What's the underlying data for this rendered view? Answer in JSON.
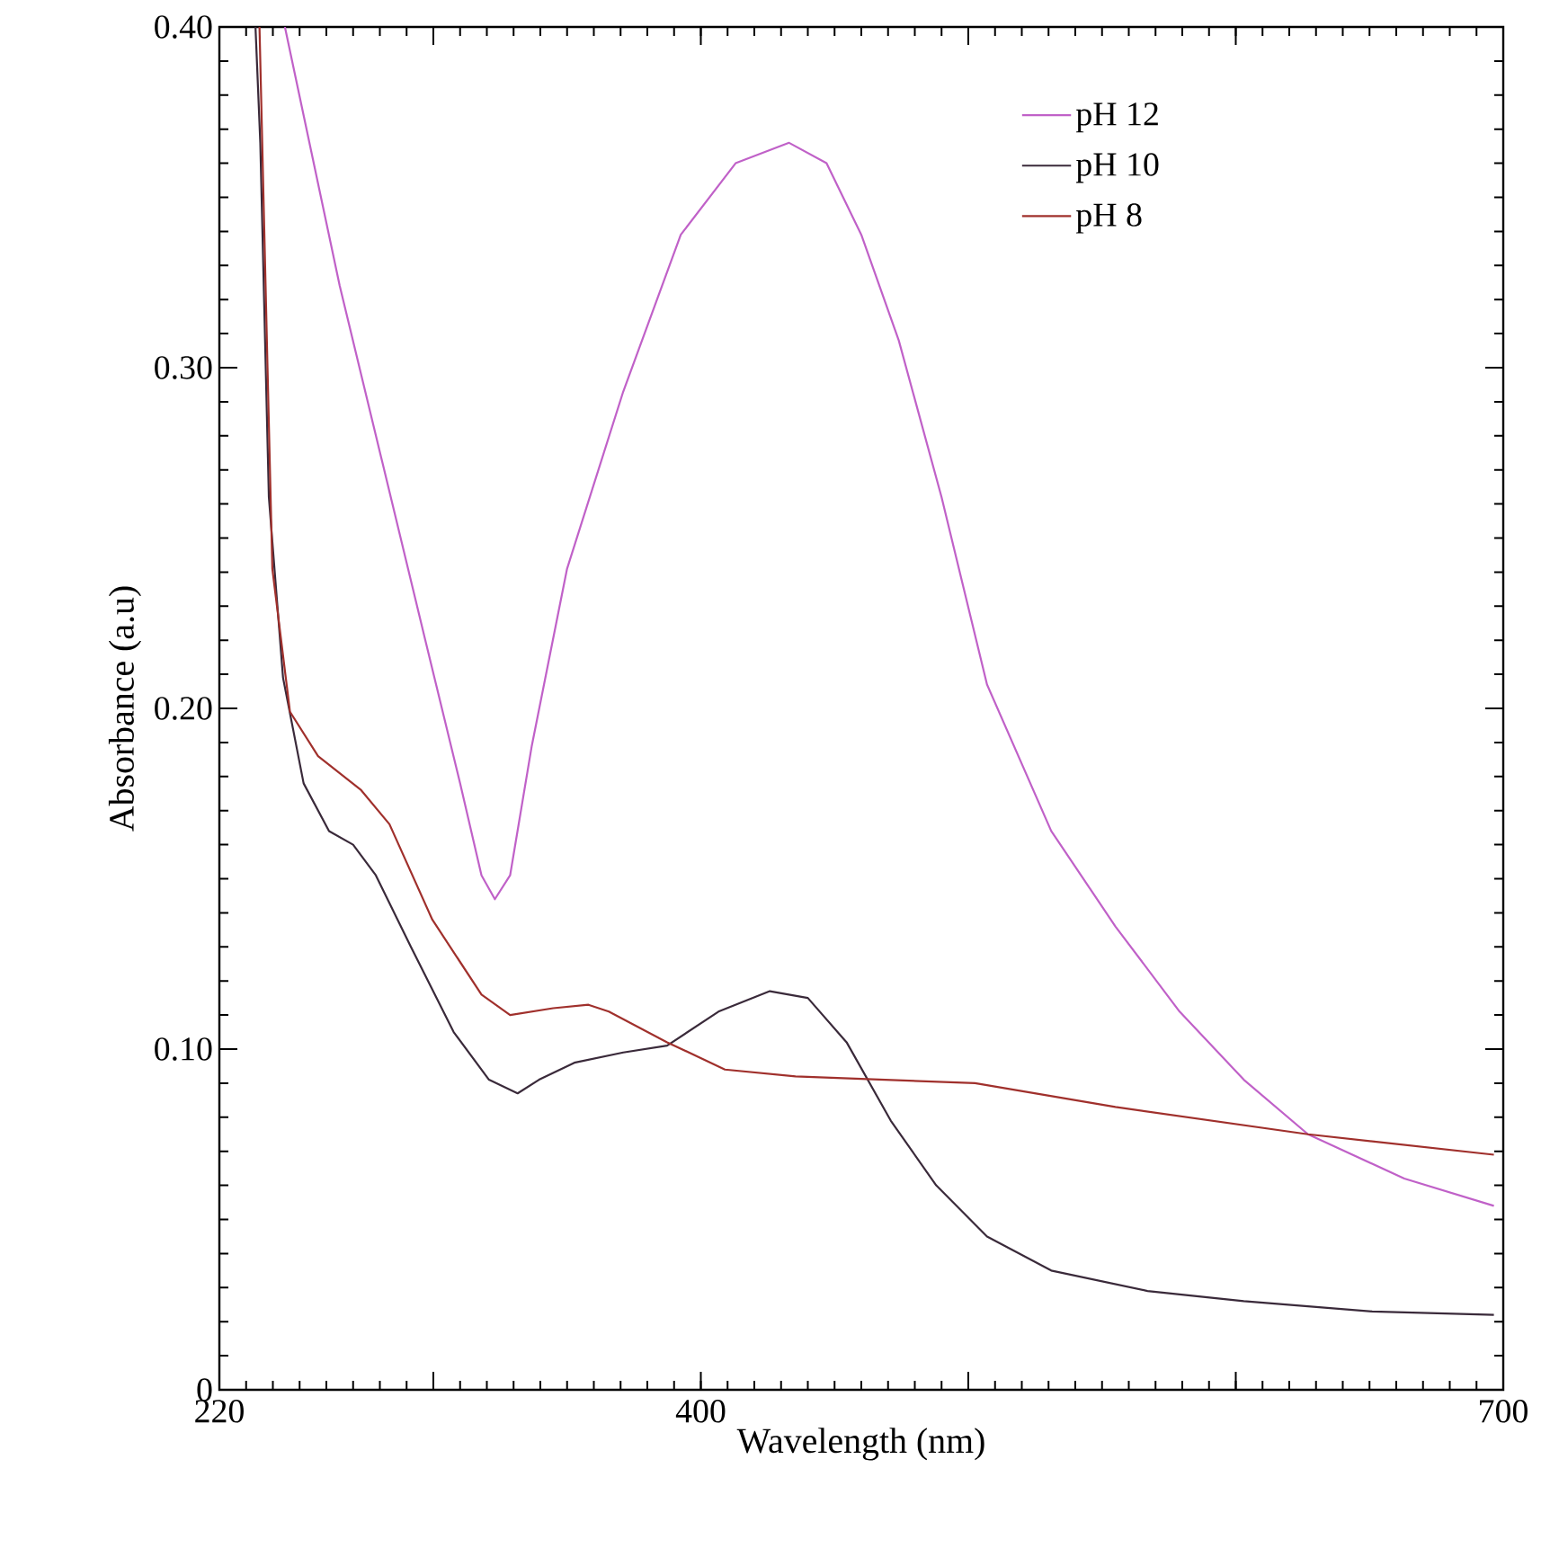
{
  "chart_data": {
    "type": "line",
    "xlabel": "Wavelength (nm)",
    "ylabel": "Absorbance (a.u)",
    "xlim": [
      220,
      700
    ],
    "ylim": [
      0,
      0.4
    ],
    "xticks": [
      220,
      {
        "value": 300,
        "label": null
      },
      400,
      {
        "value": 500,
        "label": null
      },
      {
        "value": 600,
        "label": null
      },
      700
    ],
    "yticks": [
      {
        "value": 0,
        "label": "0"
      },
      {
        "value": 0.1,
        "label": "0.10"
      },
      {
        "value": 0.2,
        "label": "0.20"
      },
      {
        "value": 0.3,
        "label": "0.30"
      },
      {
        "value": 0.4,
        "label": "0.40"
      }
    ],
    "grid": false,
    "legend": "top right",
    "marker": "none",
    "line_style": "solid",
    "series": [
      {
        "name": "pH 12",
        "color": "#c061c8",
        "x": [
          244.5,
          265,
          281,
          297,
          310,
          318,
          323,
          328.7,
          336.8,
          350,
          371,
          392.5,
          413,
          433,
          447,
          460,
          474,
          490,
          507,
          531,
          555,
          579,
          603,
          627,
          663,
          696.5
        ],
        "values": [
          0.4,
          0.324,
          0.272,
          0.22,
          0.178,
          0.151,
          0.144,
          0.151,
          0.189,
          0.241,
          0.293,
          0.339,
          0.36,
          0.366,
          0.36,
          0.339,
          0.308,
          0.262,
          0.207,
          0.164,
          0.136,
          0.111,
          0.091,
          0.075,
          0.062,
          0.054
        ]
      },
      {
        "name": "pH 10",
        "color": "#3a2a3a",
        "x": [
          233.5,
          235.3,
          238.5,
          243.8,
          251.5,
          261,
          270,
          278.5,
          291.6,
          307.6,
          320.8,
          331.5,
          339.5,
          352.7,
          371,
          387.4,
          406.6,
          425.8,
          440,
          454.5,
          471,
          488,
          507,
          531,
          567,
          603,
          651,
          696.5
        ],
        "values": [
          0.4,
          0.366,
          0.262,
          0.209,
          0.178,
          0.164,
          0.16,
          0.151,
          0.13,
          0.105,
          0.091,
          0.087,
          0.091,
          0.096,
          0.099,
          0.101,
          0.111,
          0.117,
          0.115,
          0.102,
          0.079,
          0.06,
          0.045,
          0.035,
          0.029,
          0.026,
          0.023,
          0.022
        ]
      },
      {
        "name": "pH 8",
        "color": "#a0302c",
        "x": [
          235,
          238,
          239.8,
          246.4,
          256.9,
          273,
          283.6,
          299.6,
          318,
          328.7,
          344.8,
          358,
          365.6,
          387.4,
          409,
          435.4,
          502.5,
          555,
          627,
          696.5
        ],
        "values": [
          0.4,
          0.3,
          0.241,
          0.199,
          0.186,
          0.176,
          0.166,
          0.138,
          0.116,
          0.11,
          0.112,
          0.113,
          0.111,
          0.102,
          0.094,
          0.092,
          0.09,
          0.083,
          0.075,
          0.069
        ]
      }
    ]
  }
}
